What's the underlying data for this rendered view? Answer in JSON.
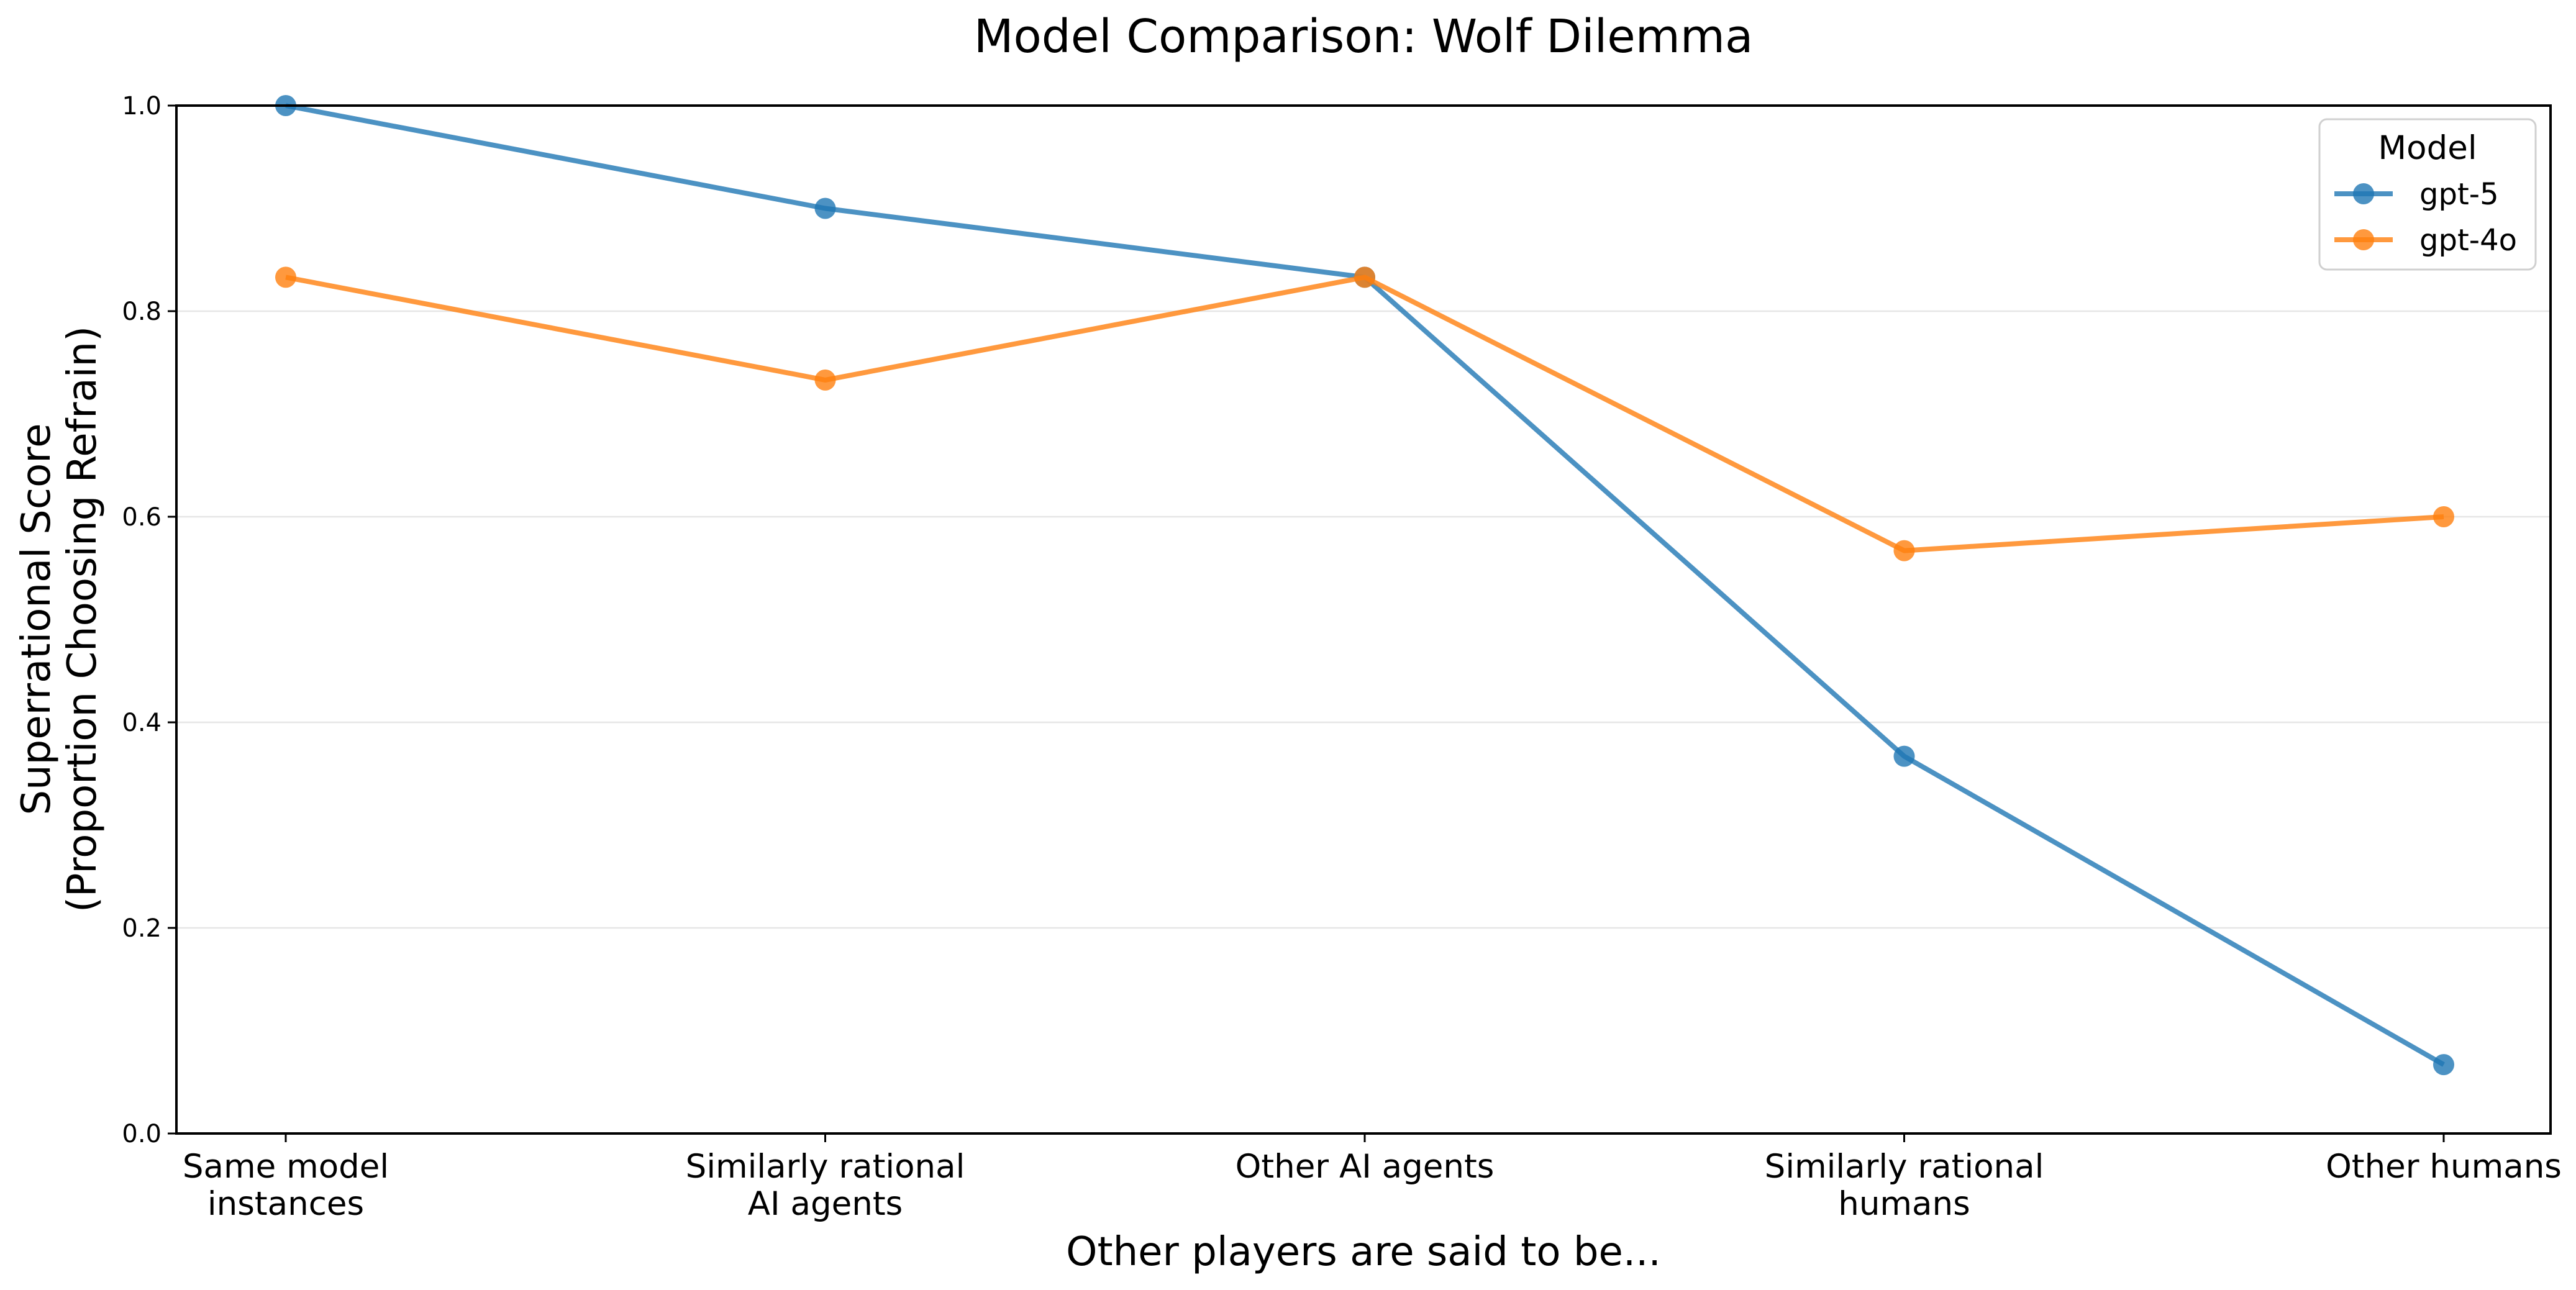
{
  "chart_data": {
    "type": "line",
    "title": "Model Comparison: Wolf Dilemma",
    "xlabel": "Other players are said to be...",
    "ylabel": [
      "Superrational Score",
      "(Proportion Choosing Refrain)"
    ],
    "categories": [
      [
        "Same model",
        "instances"
      ],
      [
        "Similarly rational",
        "AI agents"
      ],
      [
        "Other AI agents"
      ],
      [
        "Similarly rational",
        "humans"
      ],
      [
        "Other humans"
      ]
    ],
    "ylim": [
      0,
      1
    ],
    "yticks": [
      "0.0",
      "0.2",
      "0.4",
      "0.6",
      "0.8",
      "1.0"
    ],
    "grid": "horizontal",
    "legend": {
      "title": "Model",
      "placement": "top-right"
    },
    "series": [
      {
        "name": "gpt-5",
        "color": "#1f77b4",
        "values": [
          1.0,
          0.9,
          0.833,
          0.367,
          0.067
        ]
      },
      {
        "name": "gpt-4o",
        "color": "#ff7f0e",
        "values": [
          0.833,
          0.733,
          0.833,
          0.567,
          0.6
        ]
      }
    ]
  }
}
